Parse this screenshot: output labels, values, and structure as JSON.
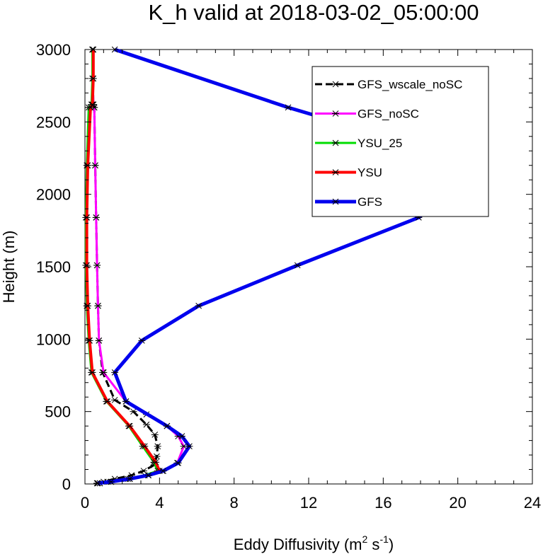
{
  "chart_data": {
    "type": "line",
    "title": "K_h valid at 2018-03-02_05:00:00",
    "xlabel": "Eddy Diffusivity (m",
    "xlabel_sup1": "2",
    "xlabel_mid": " s",
    "xlabel_sup2": "-1",
    "xlabel_end": ")",
    "ylabel": "Height (m)",
    "xlim": [
      0,
      24
    ],
    "ylim": [
      0,
      3000
    ],
    "xticks": [
      0,
      4,
      8,
      12,
      16,
      20,
      24
    ],
    "yticks": [
      0,
      500,
      1000,
      1500,
      2000,
      2500,
      3000
    ],
    "grid": false,
    "legend_position": "top-right",
    "series": [
      {
        "name": "GFS_wscale_noSC",
        "color": "#000000",
        "dashed": true,
        "width": 3,
        "x": [
          0.65,
          1.0,
          1.6,
          2.5,
          3.15,
          3.7,
          3.85,
          3.9,
          3.75,
          3.3,
          2.6,
          1.6,
          0.95,
          0.75,
          0.7,
          0.65,
          0.6,
          0.55,
          0.5,
          0.45,
          0.4
        ],
        "y": [
          5,
          15,
          35,
          60,
          90,
          130,
          190,
          260,
          340,
          410,
          500,
          580,
          770,
          990,
          1230,
          1510,
          1840,
          2200,
          2600,
          2620,
          3000
        ]
      },
      {
        "name": "GFS_noSC",
        "color": "#ff00ff",
        "dashed": false,
        "width": 3,
        "x": [
          0.65,
          1.2,
          2.2,
          3.4,
          4.15,
          4.95,
          5.3,
          5.0,
          4.4,
          3.3,
          2.2,
          1.0,
          0.75,
          0.7,
          0.65,
          0.6,
          0.55,
          0.5,
          0.45,
          0.4
        ],
        "y": [
          5,
          15,
          35,
          60,
          90,
          145,
          260,
          330,
          400,
          480,
          570,
          770,
          990,
          1230,
          1510,
          1840,
          2200,
          2600,
          2620,
          3000
        ]
      },
      {
        "name": "YSU_25",
        "color": "#00dd00",
        "dashed": false,
        "width": 3,
        "x": [
          0.8,
          1.4,
          2.3,
          3.2,
          3.9,
          3.7,
          3.1,
          2.35,
          1.15,
          0.35,
          0.2,
          0.1,
          0.05,
          0.05,
          0.1,
          0.2,
          0.35,
          0.4,
          0.4
        ],
        "y": [
          5,
          15,
          35,
          60,
          90,
          150,
          260,
          400,
          570,
          770,
          990,
          1230,
          1510,
          1840,
          2200,
          2600,
          2620,
          2800,
          3000
        ]
      },
      {
        "name": "YSU",
        "color": "#ff0000",
        "dashed": false,
        "width": 4,
        "x": [
          0.8,
          1.4,
          2.4,
          3.4,
          4.0,
          3.8,
          3.2,
          2.4,
          1.2,
          0.4,
          0.25,
          0.15,
          0.1,
          0.1,
          0.15,
          0.3,
          0.4,
          0.45,
          0.45
        ],
        "y": [
          5,
          15,
          35,
          60,
          90,
          150,
          260,
          400,
          570,
          770,
          990,
          1230,
          1510,
          1840,
          2200,
          2600,
          2620,
          2800,
          3000
        ]
      },
      {
        "name": "GFS",
        "color": "#0000ee",
        "dashed": false,
        "width": 5,
        "x": [
          0.7,
          1.4,
          2.4,
          3.4,
          4.2,
          5.0,
          5.6,
          5.2,
          4.4,
          2.2,
          1.6,
          3.05,
          6.1,
          11.4,
          17.9,
          21.4,
          10.9,
          1.6
        ],
        "y": [
          5,
          15,
          35,
          60,
          90,
          145,
          260,
          330,
          400,
          570,
          770,
          990,
          1230,
          1510,
          1840,
          2200,
          2600,
          3000
        ]
      }
    ]
  }
}
